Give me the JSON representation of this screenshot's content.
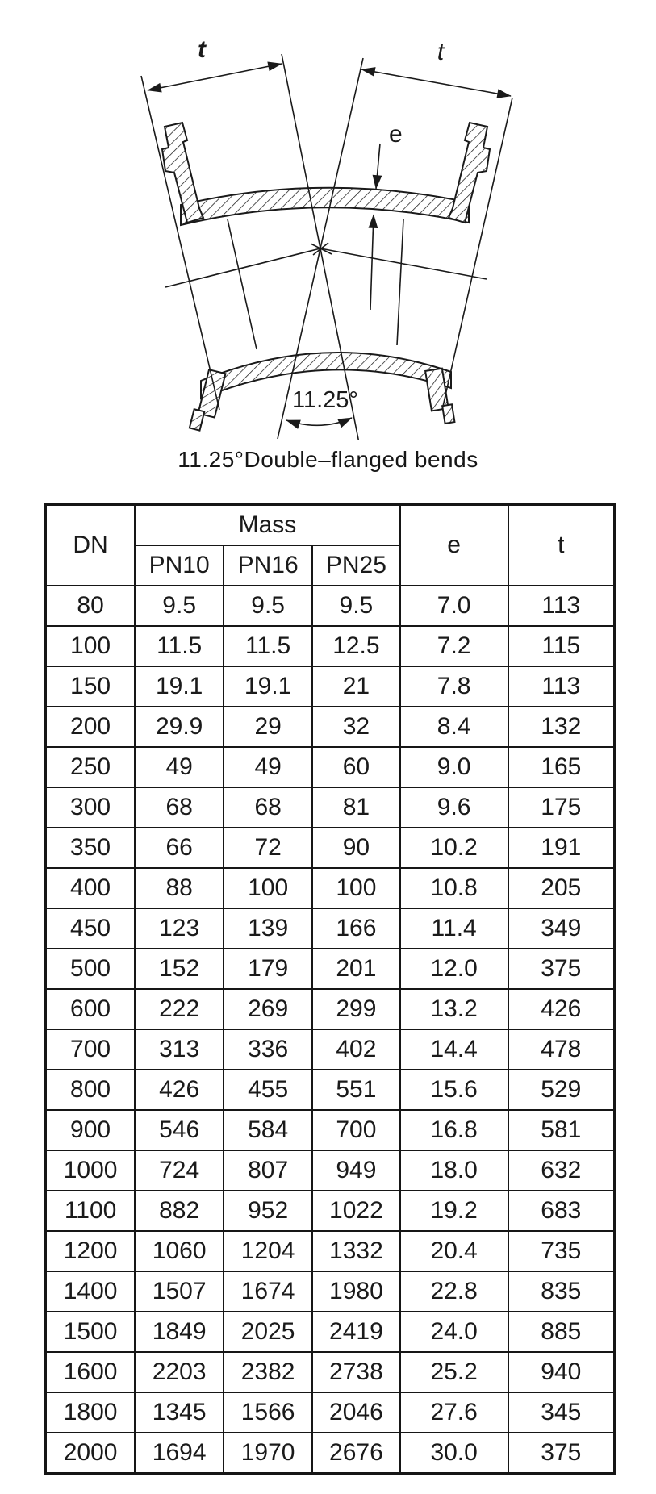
{
  "diagram": {
    "labels": {
      "t_left": "t",
      "t_right": "t",
      "e": "e",
      "angle": "11.25°"
    },
    "caption": "11.25°Double–flanged bends"
  },
  "table": {
    "header": {
      "dn": "DN",
      "mass": "Mass",
      "pn10": "PN10",
      "pn16": "PN16",
      "pn25": "PN25",
      "e": "e",
      "t": "t"
    },
    "rows": [
      [
        "80",
        "9.5",
        "9.5",
        "9.5",
        "7.0",
        "113"
      ],
      [
        "100",
        "11.5",
        "11.5",
        "12.5",
        "7.2",
        "115"
      ],
      [
        "150",
        "19.1",
        "19.1",
        "21",
        "7.8",
        "113"
      ],
      [
        "200",
        "29.9",
        "29",
        "32",
        "8.4",
        "132"
      ],
      [
        "250",
        "49",
        "49",
        "60",
        "9.0",
        "165"
      ],
      [
        "300",
        "68",
        "68",
        "81",
        "9.6",
        "175"
      ],
      [
        "350",
        "66",
        "72",
        "90",
        "10.2",
        "191"
      ],
      [
        "400",
        "88",
        "100",
        "100",
        "10.8",
        "205"
      ],
      [
        "450",
        "123",
        "139",
        "166",
        "11.4",
        "349"
      ],
      [
        "500",
        "152",
        "179",
        "201",
        "12.0",
        "375"
      ],
      [
        "600",
        "222",
        "269",
        "299",
        "13.2",
        "426"
      ],
      [
        "700",
        "313",
        "336",
        "402",
        "14.4",
        "478"
      ],
      [
        "800",
        "426",
        "455",
        "551",
        "15.6",
        "529"
      ],
      [
        "900",
        "546",
        "584",
        "700",
        "16.8",
        "581"
      ],
      [
        "1000",
        "724",
        "807",
        "949",
        "18.0",
        "632"
      ],
      [
        "1100",
        "882",
        "952",
        "1022",
        "19.2",
        "683"
      ],
      [
        "1200",
        "1060",
        "1204",
        "1332",
        "20.4",
        "735"
      ],
      [
        "1400",
        "1507",
        "1674",
        "1980",
        "22.8",
        "835"
      ],
      [
        "1500",
        "1849",
        "2025",
        "2419",
        "24.0",
        "885"
      ],
      [
        "1600",
        "2203",
        "2382",
        "2738",
        "25.2",
        "940"
      ],
      [
        "1800",
        "1345",
        "1566",
        "2046",
        "27.6",
        "345"
      ],
      [
        "2000",
        "1694",
        "1970",
        "2676",
        "30.0",
        "375"
      ]
    ]
  },
  "colors": {
    "ink": "#1a1a1a",
    "background": "#ffffff"
  }
}
